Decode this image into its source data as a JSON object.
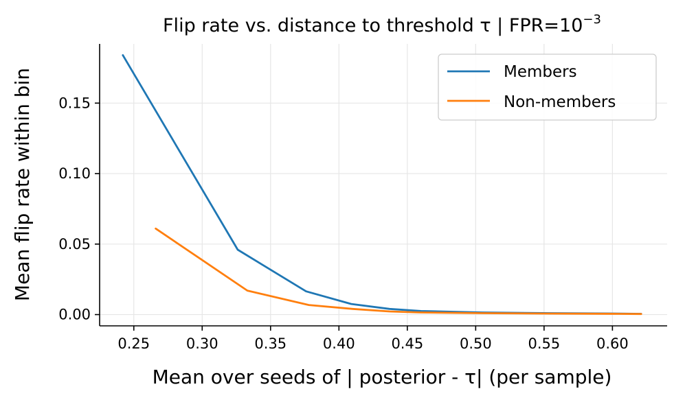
{
  "chart_data": {
    "type": "line",
    "title": "Flip rate vs. distance to threshold τ  |  FPR=10",
    "title_superscript": "−3",
    "xlabel": "Mean over seeds of | posterior - τ| (per sample)",
    "ylabel": "Mean flip rate within bin",
    "xlim": [
      0.225,
      0.64
    ],
    "ylim": [
      -0.008,
      0.192
    ],
    "x_ticks": [
      0.25,
      0.3,
      0.35,
      0.4,
      0.45,
      0.5,
      0.55,
      0.6
    ],
    "x_tick_labels": [
      "0.25",
      "0.30",
      "0.35",
      "0.40",
      "0.45",
      "0.50",
      "0.55",
      "0.60"
    ],
    "y_ticks": [
      0.0,
      0.05,
      0.1,
      0.15
    ],
    "y_tick_labels": [
      "0.00",
      "0.05",
      "0.10",
      "0.15"
    ],
    "grid": true,
    "legend_position": "top-right",
    "series": [
      {
        "name": "Members",
        "color": "#1f77b4",
        "x": [
          0.242,
          0.326,
          0.376,
          0.409,
          0.437,
          0.46,
          0.505,
          0.555,
          0.605,
          0.621
        ],
        "y": [
          0.184,
          0.046,
          0.0165,
          0.0075,
          0.004,
          0.0025,
          0.0015,
          0.001,
          0.0007,
          0.0005
        ]
      },
      {
        "name": "Non-members",
        "color": "#ff7f0e",
        "x": [
          0.266,
          0.333,
          0.378,
          0.41,
          0.437,
          0.46,
          0.505,
          0.555,
          0.605,
          0.621
        ],
        "y": [
          0.061,
          0.017,
          0.0068,
          0.004,
          0.0022,
          0.0015,
          0.001,
          0.0007,
          0.0005,
          0.0004
        ]
      }
    ]
  }
}
